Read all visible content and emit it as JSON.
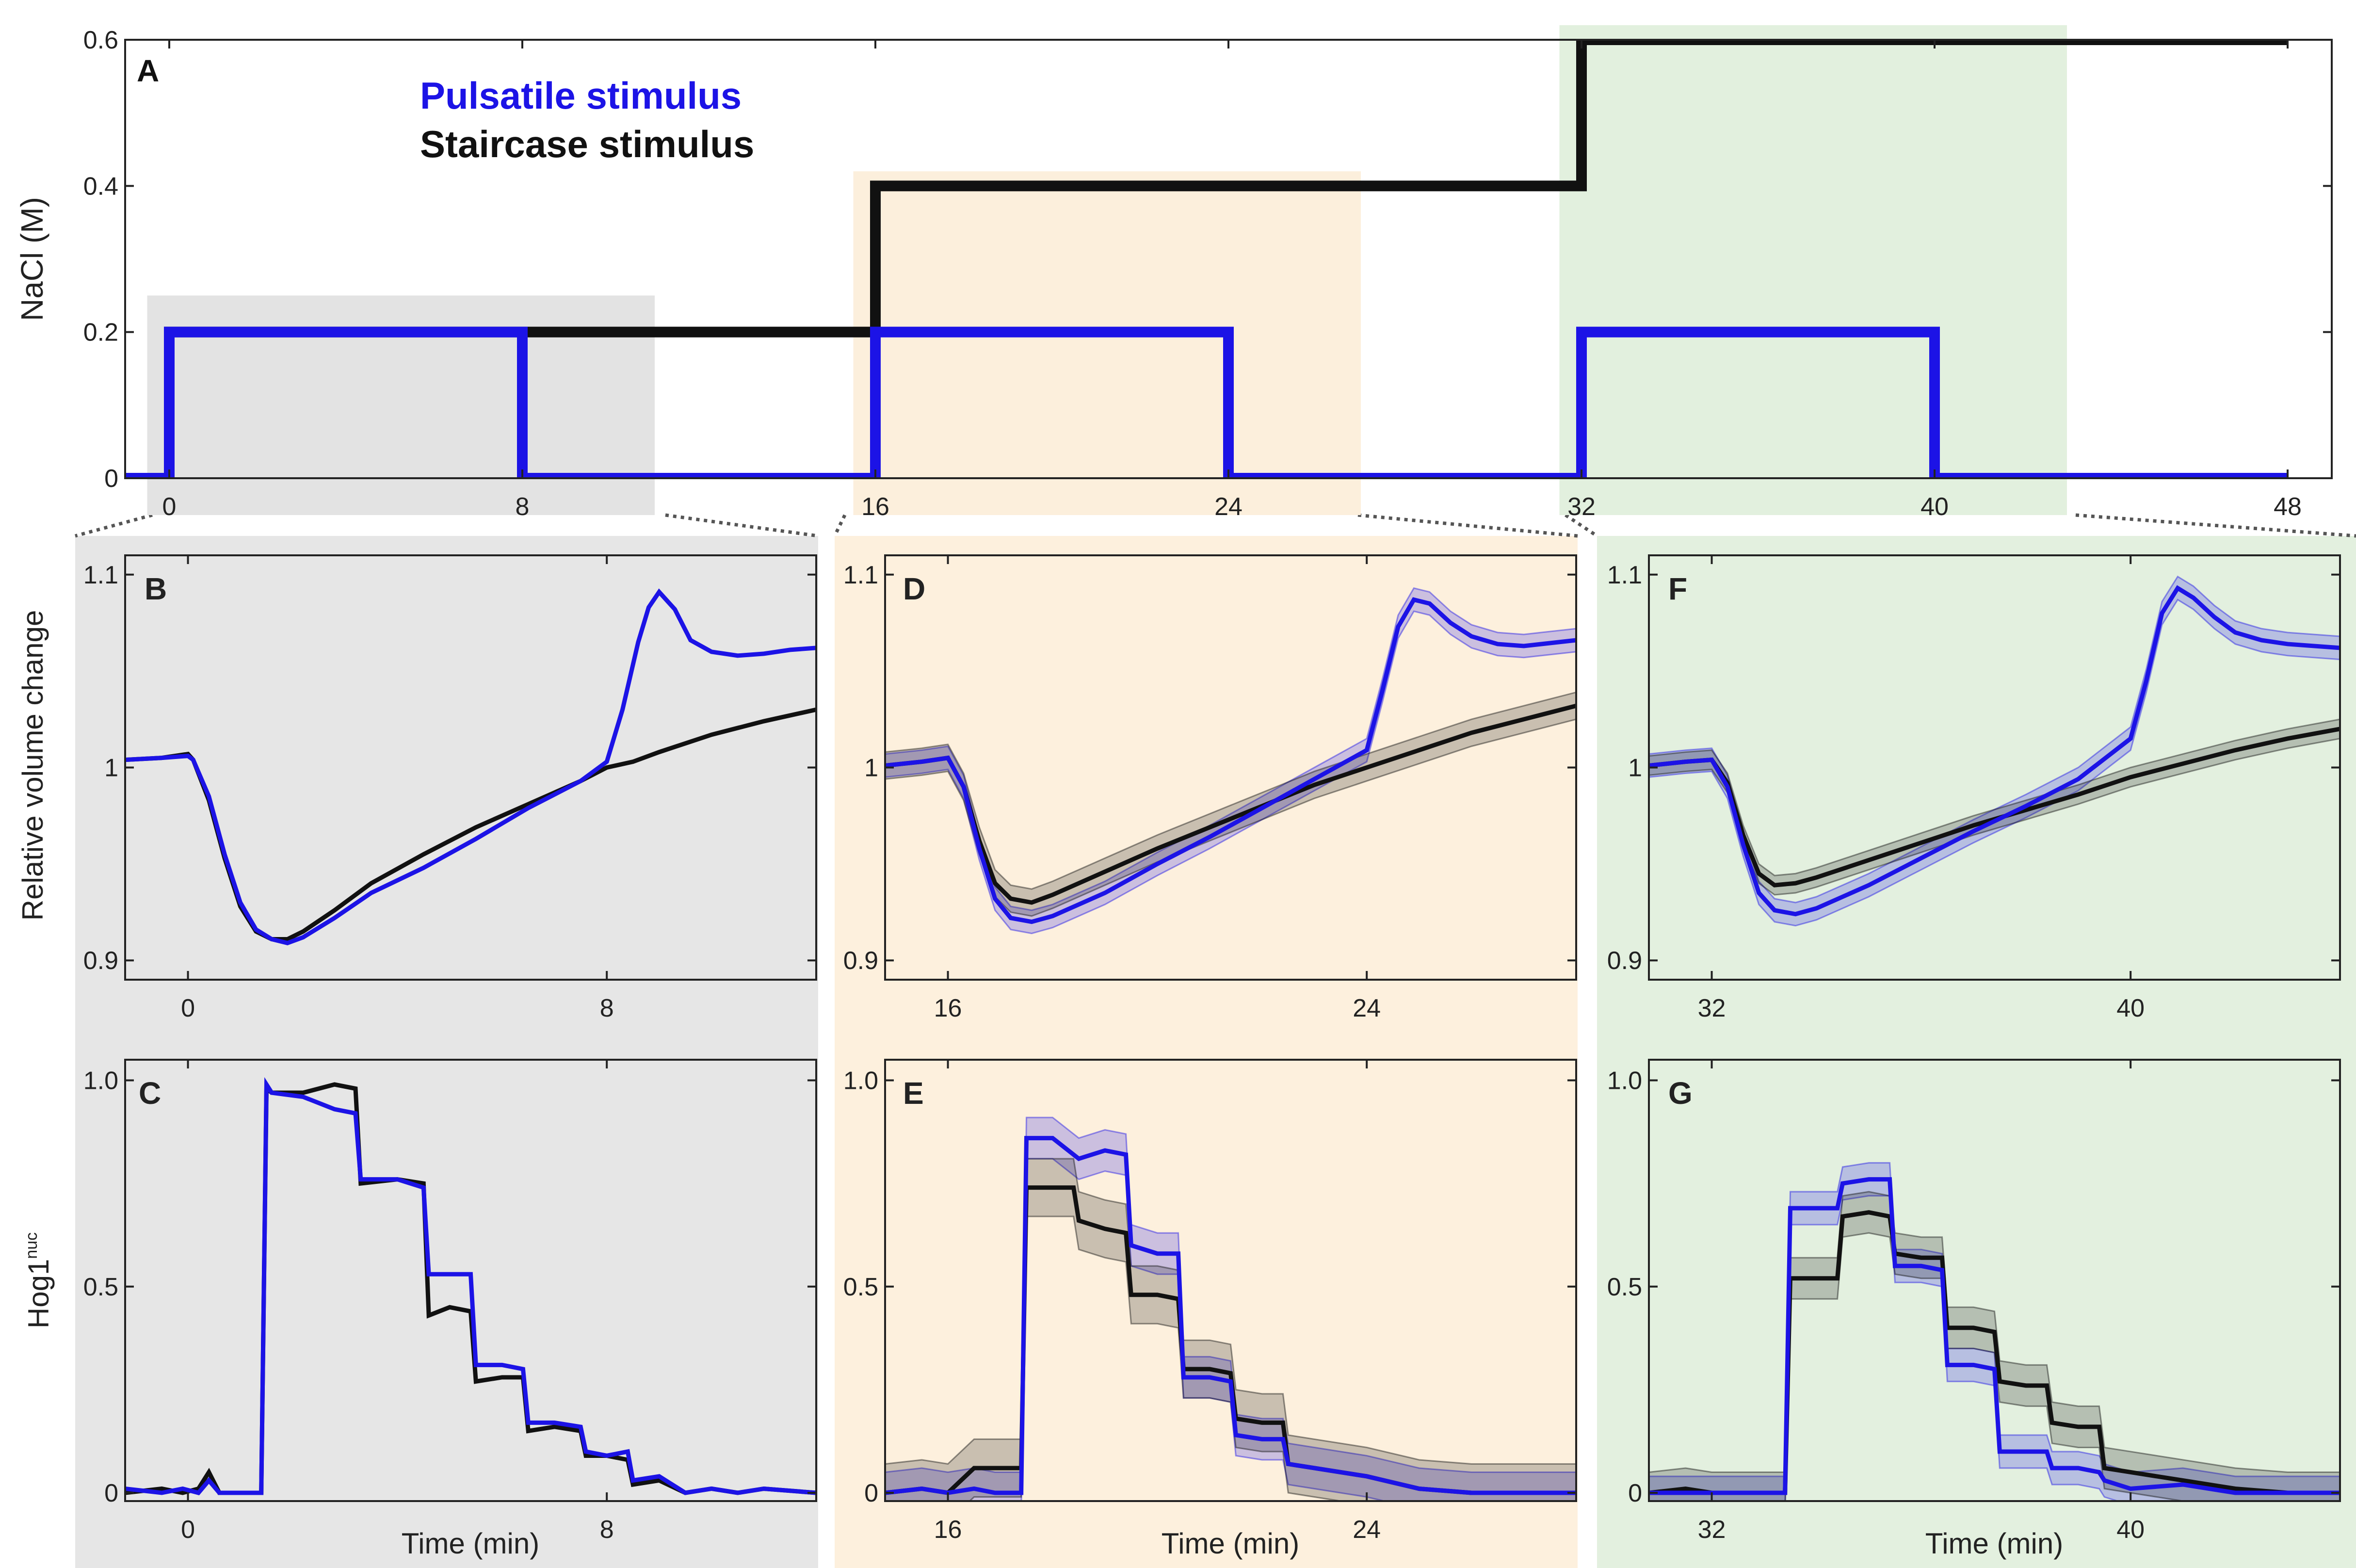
{
  "colors": {
    "pulsatile": "#1c13e6",
    "staircase": "#111111",
    "bg_window_1": "#e6e6e6",
    "bg_window_2": "#fdf0dd",
    "bg_window_3": "#e3f0df",
    "top_band_1": "#e3e3e3",
    "top_band_2": "#fcefdc",
    "top_band_3": "#e2f0de"
  },
  "legend": {
    "pulsatile": "Pulsatile stimulus",
    "staircase": "Staircase stimulus"
  },
  "chart_data": [
    {
      "panel": "A",
      "type": "line",
      "ylabel": "NaCl (M)",
      "xlim": [
        -1,
        49
      ],
      "ylim": [
        0,
        0.6
      ],
      "x_ticks": [
        "0",
        "8",
        "16",
        "24",
        "32",
        "40",
        "48"
      ],
      "y_ticks": [
        "0",
        "0.2",
        "0.4",
        "0.6"
      ],
      "highlight_windows": [
        [
          -0.5,
          11
        ],
        [
          15.5,
          27
        ],
        [
          31.5,
          43
        ]
      ],
      "series": [
        {
          "name": "Pulsatile stimulus",
          "x": [
            -1,
            0,
            0,
            8,
            8,
            16,
            16,
            24,
            24,
            32,
            32,
            40,
            40,
            48
          ],
          "y": [
            0,
            0,
            0.2,
            0.2,
            0,
            0,
            0.2,
            0.2,
            0,
            0,
            0.2,
            0.2,
            0,
            0
          ]
        },
        {
          "name": "Staircase stimulus",
          "x": [
            -1,
            0,
            0,
            16,
            16,
            32,
            32,
            48
          ],
          "y": [
            0,
            0,
            0.2,
            0.2,
            0.4,
            0.4,
            0.6,
            0.6
          ]
        }
      ]
    },
    {
      "panel": "B",
      "type": "line",
      "ylabel": "Relative volume change",
      "xlim": [
        -1.2,
        12
      ],
      "ylim": [
        0.89,
        1.11
      ],
      "x_ticks": [
        "0",
        "8"
      ],
      "y_ticks": [
        "0.9",
        "1",
        "1.1"
      ],
      "series": [
        {
          "name": "Pulsatile stimulus",
          "x": [
            -1.2,
            -0.5,
            0,
            0.1,
            0.4,
            0.7,
            1.0,
            1.3,
            1.6,
            1.9,
            2.2,
            2.8,
            3.5,
            4.5,
            5.5,
            6.5,
            7.5,
            8.0,
            8.3,
            8.6,
            8.8,
            9.0,
            9.3,
            9.6,
            10.0,
            10.5,
            11.0,
            11.5,
            12.0
          ],
          "y": [
            1.004,
            1.005,
            1.006,
            1.004,
            0.985,
            0.955,
            0.93,
            0.916,
            0.911,
            0.909,
            0.912,
            0.922,
            0.935,
            0.948,
            0.963,
            0.979,
            0.993,
            1.003,
            1.03,
            1.065,
            1.083,
            1.091,
            1.082,
            1.066,
            1.06,
            1.058,
            1.059,
            1.061,
            1.062
          ]
        },
        {
          "name": "Staircase stimulus",
          "x": [
            -1.2,
            -0.5,
            0,
            0.1,
            0.4,
            0.7,
            1.0,
            1.3,
            1.6,
            1.9,
            2.2,
            2.8,
            3.5,
            4.5,
            5.5,
            6.5,
            7.5,
            8.0,
            8.5,
            9.0,
            10.0,
            11.0,
            12.0
          ],
          "y": [
            1.004,
            1.005,
            1.007,
            1.004,
            0.983,
            0.953,
            0.928,
            0.915,
            0.911,
            0.911,
            0.915,
            0.926,
            0.94,
            0.955,
            0.969,
            0.981,
            0.993,
            1.0,
            1.003,
            1.008,
            1.017,
            1.024,
            1.03
          ]
        }
      ]
    },
    {
      "panel": "C",
      "type": "line",
      "ylabel": "Hog1",
      "ylabel_superscript": "nuc",
      "xlabel": "Time (min)",
      "xlim": [
        -1.2,
        12
      ],
      "ylim": [
        -0.02,
        1.05
      ],
      "x_ticks": [
        "0",
        "8"
      ],
      "y_ticks": [
        "0",
        "0.5",
        "1.0"
      ],
      "series": [
        {
          "name": "Pulsatile stimulus",
          "x": [
            -1.2,
            -0.5,
            -0.1,
            0.2,
            0.4,
            0.6,
            1.4,
            1.5,
            1.6,
            2.2,
            2.8,
            3.2,
            3.3,
            4.0,
            4.5,
            4.6,
            5.0,
            5.4,
            5.5,
            6.0,
            6.4,
            6.5,
            7.0,
            7.5,
            7.6,
            8.0,
            8.4,
            8.5,
            9.0,
            9.5,
            10.0,
            10.5,
            11.0,
            12.0
          ],
          "y": [
            0.01,
            0.0,
            0.01,
            0.0,
            0.03,
            0.0,
            0.0,
            0.99,
            0.97,
            0.96,
            0.93,
            0.92,
            0.76,
            0.76,
            0.74,
            0.53,
            0.53,
            0.53,
            0.31,
            0.31,
            0.3,
            0.17,
            0.17,
            0.16,
            0.1,
            0.09,
            0.1,
            0.03,
            0.04,
            0.0,
            0.01,
            0.0,
            0.01,
            0.0
          ]
        },
        {
          "name": "Staircase stimulus",
          "x": [
            -1.2,
            -0.5,
            -0.1,
            0.2,
            0.4,
            0.6,
            1.4,
            1.5,
            1.6,
            2.2,
            2.8,
            3.2,
            3.3,
            4.0,
            4.5,
            4.6,
            5.0,
            5.4,
            5.5,
            6.0,
            6.4,
            6.5,
            7.0,
            7.5,
            7.6,
            8.0,
            8.4,
            8.5,
            9.0,
            9.5,
            10.0,
            10.5,
            11.0,
            12.0
          ],
          "y": [
            0.0,
            0.01,
            0.0,
            0.01,
            0.05,
            0.0,
            0.0,
            0.98,
            0.97,
            0.97,
            0.99,
            0.98,
            0.75,
            0.76,
            0.75,
            0.43,
            0.45,
            0.44,
            0.27,
            0.28,
            0.28,
            0.15,
            0.16,
            0.15,
            0.09,
            0.09,
            0.08,
            0.02,
            0.03,
            0.0,
            0.01,
            0.0,
            0.01,
            0.0
          ]
        }
      ]
    },
    {
      "panel": "D",
      "type": "line",
      "xlim": [
        14.8,
        28
      ],
      "ylim": [
        0.89,
        1.11
      ],
      "x_ticks": [
        "16",
        "24"
      ],
      "y_ticks": [
        "0.9",
        "1",
        "1.1"
      ],
      "series": [
        {
          "name": "Pulsatile stimulus",
          "band": 0.006,
          "x": [
            14.8,
            15.5,
            16.0,
            16.3,
            16.6,
            16.9,
            17.2,
            17.6,
            18.0,
            19.0,
            20.0,
            21.0,
            22.0,
            23.0,
            24.0,
            24.3,
            24.6,
            24.9,
            25.2,
            25.6,
            26.0,
            26.5,
            27.0,
            28.0
          ],
          "y": [
            1.001,
            1.003,
            1.005,
            0.99,
            0.958,
            0.932,
            0.922,
            0.92,
            0.923,
            0.935,
            0.95,
            0.964,
            0.979,
            0.994,
            1.009,
            1.04,
            1.073,
            1.087,
            1.085,
            1.075,
            1.068,
            1.064,
            1.063,
            1.066
          ]
        },
        {
          "name": "Staircase stimulus",
          "band": 0.007,
          "x": [
            14.8,
            15.5,
            16.0,
            16.3,
            16.6,
            16.9,
            17.2,
            17.6,
            18.0,
            19.0,
            20.0,
            21.0,
            22.0,
            23.0,
            24.0,
            25.0,
            26.0,
            27.0,
            28.0
          ],
          "y": [
            1.001,
            1.003,
            1.005,
            0.99,
            0.962,
            0.94,
            0.932,
            0.93,
            0.934,
            0.946,
            0.958,
            0.969,
            0.98,
            0.991,
            1.0,
            1.009,
            1.018,
            1.025,
            1.032
          ]
        }
      ]
    },
    {
      "panel": "E",
      "type": "line",
      "xlabel": "Time (min)",
      "xlim": [
        14.8,
        28
      ],
      "ylim": [
        -0.02,
        1.05
      ],
      "x_ticks": [
        "16",
        "24"
      ],
      "y_ticks": [
        "0",
        "0.5",
        "1.0"
      ],
      "series": [
        {
          "name": "Pulsatile stimulus",
          "band": 0.05,
          "x": [
            14.8,
            15.5,
            16.0,
            16.5,
            16.9,
            17.0,
            17.4,
            17.5,
            18.0,
            18.4,
            18.5,
            19.0,
            19.4,
            19.5,
            20.0,
            20.4,
            20.5,
            21.0,
            21.4,
            21.5,
            22.0,
            22.4,
            22.5,
            23.0,
            24.0,
            25.0,
            26.0,
            27.0,
            28.0
          ],
          "y": [
            0.0,
            0.01,
            0.0,
            0.01,
            0.0,
            0.0,
            0.0,
            0.86,
            0.86,
            0.82,
            0.81,
            0.83,
            0.82,
            0.6,
            0.58,
            0.58,
            0.28,
            0.28,
            0.27,
            0.14,
            0.13,
            0.13,
            0.07,
            0.06,
            0.04,
            0.01,
            0.0,
            0.0,
            0.0
          ]
        },
        {
          "name": "Staircase stimulus",
          "band": 0.07,
          "x": [
            14.8,
            15.5,
            16.0,
            16.5,
            16.9,
            17.0,
            17.4,
            17.5,
            18.0,
            18.4,
            18.5,
            19.0,
            19.4,
            19.5,
            20.0,
            20.4,
            20.5,
            21.0,
            21.4,
            21.5,
            22.0,
            22.4,
            22.5,
            23.0,
            24.0,
            25.0,
            26.0,
            27.0,
            28.0
          ],
          "y": [
            0.0,
            0.01,
            0.0,
            0.06,
            0.06,
            0.06,
            0.06,
            0.74,
            0.74,
            0.74,
            0.66,
            0.64,
            0.63,
            0.48,
            0.48,
            0.47,
            0.3,
            0.3,
            0.29,
            0.18,
            0.17,
            0.17,
            0.07,
            0.06,
            0.04,
            0.01,
            0.0,
            0.0,
            0.0
          ]
        }
      ]
    },
    {
      "panel": "F",
      "type": "line",
      "xlim": [
        30.8,
        44
      ],
      "ylim": [
        0.89,
        1.11
      ],
      "x_ticks": [
        "32",
        "40"
      ],
      "y_ticks": [
        "0.9",
        "1",
        "1.1"
      ],
      "series": [
        {
          "name": "Pulsatile stimulus",
          "band": 0.006,
          "x": [
            30.8,
            31.5,
            32.0,
            32.3,
            32.6,
            32.9,
            33.2,
            33.6,
            34.0,
            35.0,
            36.0,
            37.0,
            38.0,
            39.0,
            40.0,
            40.3,
            40.6,
            40.9,
            41.2,
            41.6,
            42.0,
            42.5,
            43.0,
            44.0
          ],
          "y": [
            1.001,
            1.003,
            1.004,
            0.99,
            0.96,
            0.935,
            0.926,
            0.924,
            0.927,
            0.939,
            0.953,
            0.967,
            0.98,
            0.994,
            1.015,
            1.045,
            1.08,
            1.093,
            1.088,
            1.078,
            1.07,
            1.066,
            1.064,
            1.062
          ]
        },
        {
          "name": "Staircase stimulus",
          "band": 0.005,
          "x": [
            30.8,
            31.5,
            32.0,
            32.3,
            32.6,
            32.9,
            33.2,
            33.6,
            34.0,
            35.0,
            36.0,
            37.0,
            38.0,
            39.0,
            40.0,
            41.0,
            42.0,
            43.0,
            44.0
          ],
          "y": [
            1.001,
            1.003,
            1.004,
            0.992,
            0.965,
            0.945,
            0.939,
            0.94,
            0.943,
            0.952,
            0.961,
            0.97,
            0.978,
            0.986,
            0.995,
            1.002,
            1.009,
            1.015,
            1.02
          ]
        }
      ]
    },
    {
      "panel": "G",
      "type": "line",
      "xlabel": "Time (min)",
      "xlim": [
        30.8,
        44
      ],
      "ylim": [
        -0.02,
        1.05
      ],
      "x_ticks": [
        "32",
        "40"
      ],
      "y_ticks": [
        "0",
        "0.5",
        "1.0"
      ],
      "series": [
        {
          "name": "Pulsatile stimulus",
          "band": 0.04,
          "x": [
            30.8,
            31.5,
            32.0,
            32.5,
            33.0,
            33.4,
            33.5,
            34.0,
            34.4,
            34.5,
            35.0,
            35.4,
            35.5,
            36.0,
            36.4,
            36.5,
            37.0,
            37.4,
            37.5,
            38.0,
            38.4,
            38.5,
            39.0,
            39.4,
            39.5,
            40.0,
            41.0,
            42.0,
            43.0,
            44.0
          ],
          "y": [
            0.0,
            0.0,
            0.0,
            0.0,
            0.0,
            0.0,
            0.69,
            0.69,
            0.69,
            0.75,
            0.76,
            0.76,
            0.55,
            0.55,
            0.54,
            0.31,
            0.31,
            0.3,
            0.1,
            0.1,
            0.1,
            0.06,
            0.06,
            0.05,
            0.03,
            0.01,
            0.02,
            0.0,
            0.0,
            0.0
          ]
        },
        {
          "name": "Staircase stimulus",
          "band": 0.05,
          "x": [
            30.8,
            31.5,
            32.0,
            32.5,
            33.0,
            33.4,
            33.5,
            34.0,
            34.4,
            34.5,
            35.0,
            35.4,
            35.5,
            36.0,
            36.4,
            36.5,
            37.0,
            37.4,
            37.5,
            38.0,
            38.4,
            38.5,
            39.0,
            39.4,
            39.5,
            40.0,
            41.0,
            42.0,
            43.0,
            44.0
          ],
          "y": [
            0.0,
            0.01,
            0.0,
            0.0,
            0.0,
            0.0,
            0.52,
            0.52,
            0.52,
            0.67,
            0.68,
            0.67,
            0.58,
            0.57,
            0.57,
            0.4,
            0.4,
            0.39,
            0.27,
            0.26,
            0.26,
            0.17,
            0.16,
            0.16,
            0.06,
            0.05,
            0.03,
            0.01,
            0.0,
            0.0
          ]
        }
      ]
    }
  ]
}
